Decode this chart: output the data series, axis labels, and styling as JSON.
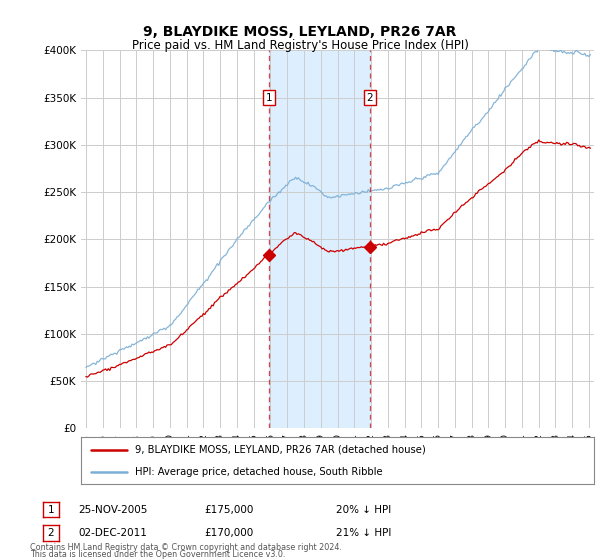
{
  "title": "9, BLAYDIKE MOSS, LEYLAND, PR26 7AR",
  "subtitle": "Price paid vs. HM Land Registry's House Price Index (HPI)",
  "legend_line1": "9, BLAYDIKE MOSS, LEYLAND, PR26 7AR (detached house)",
  "legend_line2": "HPI: Average price, detached house, South Ribble",
  "purchase1_date": "25-NOV-2005",
  "purchase1_price": 175000,
  "purchase1_label": "20% ↓ HPI",
  "purchase1_year": 2005.92,
  "purchase2_date": "02-DEC-2011",
  "purchase2_price": 170000,
  "purchase2_label": "21% ↓ HPI",
  "purchase2_year": 2011.92,
  "footer1": "Contains HM Land Registry data © Crown copyright and database right 2024.",
  "footer2": "This data is licensed under the Open Government Licence v3.0.",
  "red_color": "#cc0000",
  "blue_color": "#7aaed4",
  "shade_color": "#ddeeff",
  "grid_color": "#cccccc",
  "background_color": "#ffffff",
  "ylim": [
    0,
    400000
  ],
  "xlim": [
    1994.7,
    2025.3
  ]
}
